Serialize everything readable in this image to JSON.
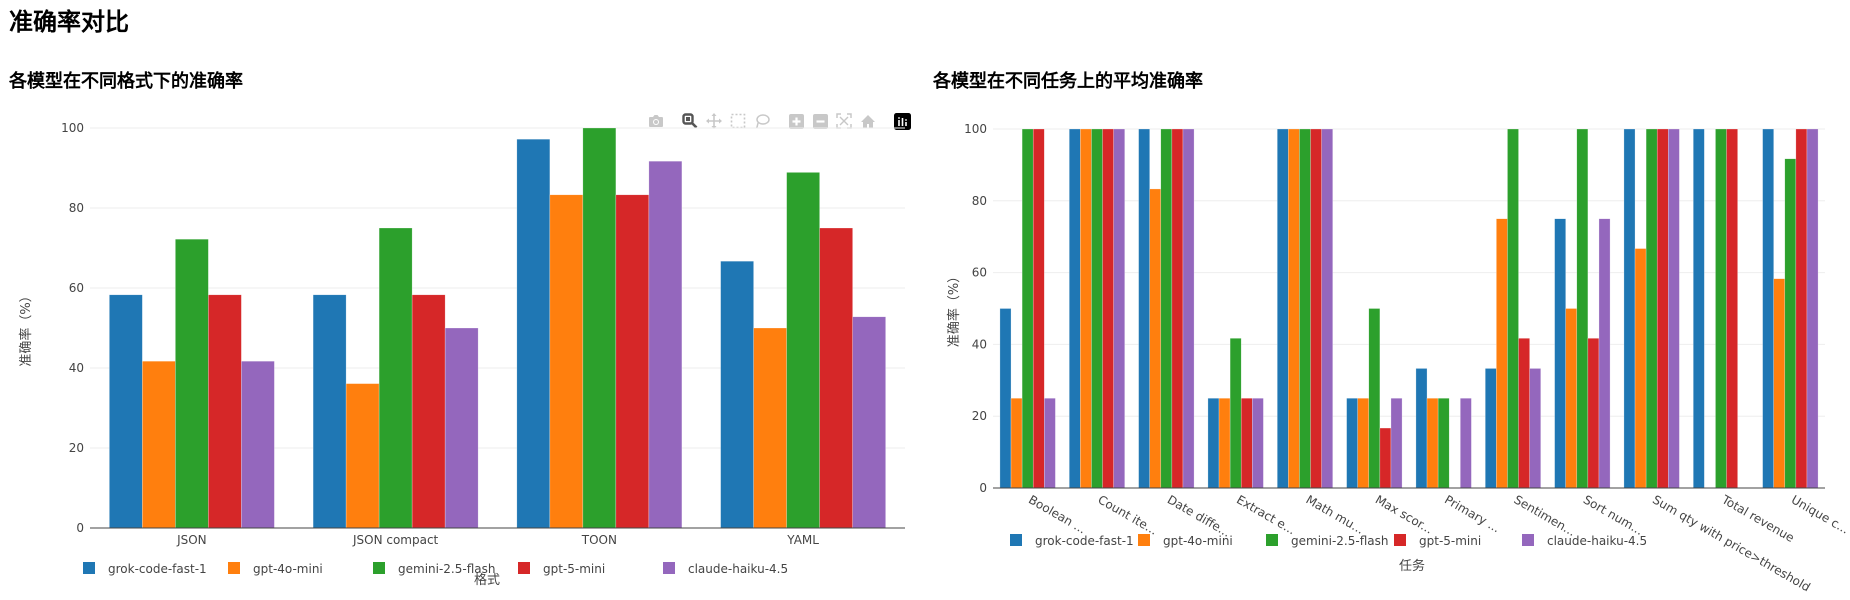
{
  "page": {
    "title": "准确率对比"
  },
  "toolbar": {
    "buttons": [
      {
        "name": "camera-icon",
        "label": "Download plot as a png"
      },
      {
        "name": "zoom-icon",
        "label": "Zoom",
        "active": true
      },
      {
        "name": "pan-icon",
        "label": "Pan"
      },
      {
        "name": "box-select-icon",
        "label": "Box Select"
      },
      {
        "name": "lasso-select-icon",
        "label": "Lasso Select"
      },
      {
        "name": "zoom-in-icon",
        "label": "Zoom in"
      },
      {
        "name": "zoom-out-icon",
        "label": "Zoom out"
      },
      {
        "name": "autoscale-icon",
        "label": "Autoscale"
      },
      {
        "name": "home-icon",
        "label": "Reset axes"
      },
      {
        "name": "plotly-logo-icon",
        "label": "Produced with Plotly"
      }
    ]
  },
  "colors": {
    "grok-code-fast-1": "#1f77b4",
    "gpt-4o-mini": "#ff7f0e",
    "gemini-2.5-flash": "#2ca02c",
    "gpt-5-mini": "#d62728",
    "claude-haiku-4.5": "#9467bd"
  },
  "chart_data": [
    {
      "type": "bar",
      "title": "各模型在不同格式下的准确率",
      "xlabel": "格式",
      "ylabel": "准确率（%）",
      "ylim": [
        0,
        100
      ],
      "yticks": [
        0,
        20,
        40,
        60,
        80,
        100
      ],
      "grid": true,
      "legend_position": "bottom-horizontal",
      "categories": [
        "JSON",
        "JSON compact",
        "TOON",
        "YAML"
      ],
      "series": [
        {
          "name": "grok-code-fast-1",
          "values": [
            58.3,
            58.3,
            97.2,
            66.7
          ]
        },
        {
          "name": "gpt-4o-mini",
          "values": [
            41.7,
            36.1,
            83.3,
            50.0
          ]
        },
        {
          "name": "gemini-2.5-flash",
          "values": [
            72.2,
            75.0,
            100.0,
            88.9
          ]
        },
        {
          "name": "gpt-5-mini",
          "values": [
            58.3,
            58.3,
            83.3,
            75.0
          ]
        },
        {
          "name": "claude-haiku-4.5",
          "values": [
            41.7,
            50.0,
            91.7,
            52.8
          ]
        }
      ]
    },
    {
      "type": "bar",
      "title": "各模型在不同任务上的平均准确率",
      "xlabel": "任务",
      "ylabel": "准确率（%）",
      "ylim": [
        0,
        100
      ],
      "yticks": [
        0,
        20,
        40,
        60,
        80,
        100
      ],
      "grid": true,
      "legend_position": "bottom-horizontal",
      "categories": [
        "Boolean ...",
        "Count ite...",
        "Date diffe...",
        "Extract e...",
        "Math mu...",
        "Max scor...",
        "Primary ...",
        "Sentimen...",
        "Sort num...",
        "Sum qty with price>threshold",
        "Total revenue",
        "Unique c..."
      ],
      "series": [
        {
          "name": "grok-code-fast-1",
          "values": [
            50,
            100,
            100,
            25,
            100,
            25,
            33.3,
            33.3,
            75,
            100,
            100,
            100
          ]
        },
        {
          "name": "gpt-4o-mini",
          "values": [
            25,
            100,
            83.3,
            25,
            100,
            25,
            25,
            75,
            50,
            66.7,
            0,
            58.3
          ]
        },
        {
          "name": "gemini-2.5-flash",
          "values": [
            100,
            100,
            100,
            41.7,
            100,
            50,
            25,
            100,
            100,
            100,
            100,
            91.7
          ]
        },
        {
          "name": "gpt-5-mini",
          "values": [
            100,
            100,
            100,
            25,
            100,
            16.7,
            0,
            41.7,
            41.7,
            100,
            100,
            100
          ]
        },
        {
          "name": "claude-haiku-4.5",
          "values": [
            25,
            100,
            100,
            25,
            100,
            25,
            25,
            33.3,
            75,
            100,
            0,
            100
          ]
        }
      ]
    }
  ]
}
